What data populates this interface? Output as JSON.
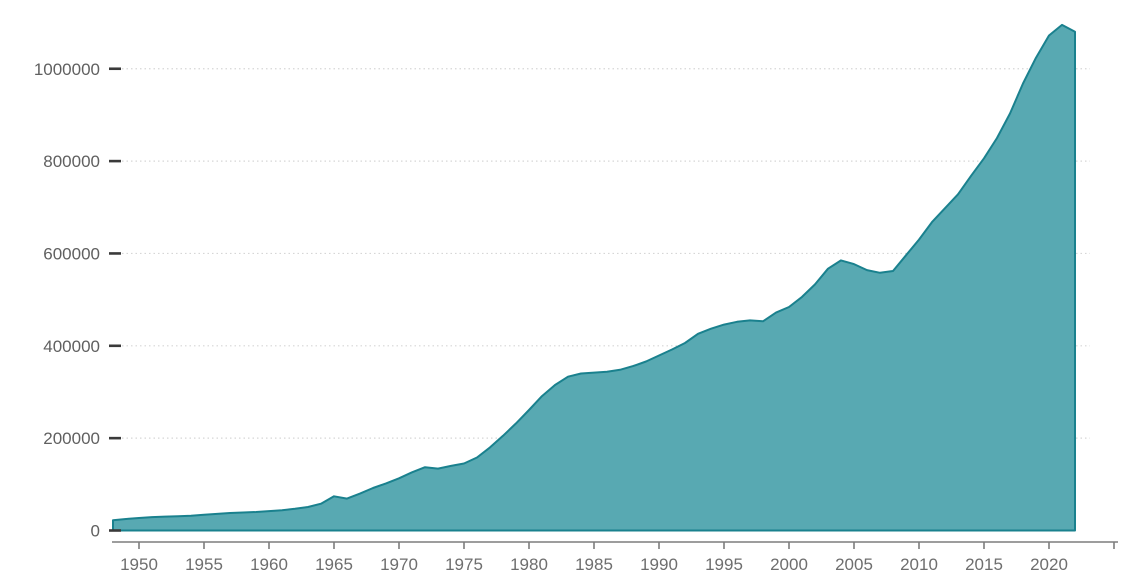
{
  "chart_data": {
    "type": "area",
    "title": "",
    "xlabel": "",
    "ylabel": "",
    "legend": "none",
    "grid": "horizontal-dotted",
    "xlim": [
      1948,
      2025
    ],
    "ylim": [
      0,
      1150000
    ],
    "x_tick_years": [
      1950,
      1955,
      1960,
      1965,
      1970,
      1975,
      1980,
      1985,
      1990,
      1995,
      2000,
      2005,
      2010,
      2015,
      2020
    ],
    "x_axis_extra_tick": 2025,
    "y_ticks": [
      0,
      200000,
      400000,
      600000,
      800000,
      1000000
    ],
    "y_tick_labels": [
      "0",
      "200000",
      "400000",
      "600000",
      "800000",
      "1000000"
    ],
    "x": [
      1948,
      1949,
      1950,
      1951,
      1952,
      1953,
      1954,
      1955,
      1956,
      1957,
      1958,
      1959,
      1960,
      1961,
      1962,
      1963,
      1964,
      1965,
      1966,
      1967,
      1968,
      1969,
      1970,
      1971,
      1972,
      1973,
      1974,
      1975,
      1976,
      1977,
      1978,
      1979,
      1980,
      1981,
      1982,
      1983,
      1984,
      1985,
      1986,
      1987,
      1988,
      1989,
      1990,
      1991,
      1992,
      1993,
      1994,
      1995,
      1996,
      1997,
      1998,
      1999,
      2000,
      2001,
      2002,
      2003,
      2004,
      2005,
      2006,
      2007,
      2008,
      2009,
      2010,
      2011,
      2012,
      2013,
      2014,
      2015,
      2016,
      2017,
      2018,
      2019,
      2020,
      2021,
      2022
    ],
    "values": [
      22000,
      25000,
      27000,
      29000,
      30000,
      31000,
      32000,
      34000,
      36000,
      38000,
      39000,
      40000,
      42000,
      44000,
      47000,
      51000,
      58000,
      74000,
      69000,
      80000,
      92000,
      102000,
      113000,
      126000,
      137000,
      134000,
      140000,
      145000,
      158000,
      180000,
      205000,
      232000,
      261000,
      291000,
      315000,
      333000,
      340000,
      342000,
      344000,
      348000,
      356000,
      366000,
      379000,
      392000,
      406000,
      426000,
      437000,
      446000,
      452000,
      455000,
      453000,
      472000,
      484000,
      506000,
      533000,
      567000,
      585000,
      577000,
      564000,
      558000,
      562000,
      596000,
      630000,
      668000,
      698000,
      728000,
      768000,
      806000,
      850000,
      903000,
      968000,
      1024000,
      1072000,
      1095000,
      1080000
    ]
  },
  "colors": {
    "area_fill": "#58A9B2",
    "area_stroke": "#1A818E",
    "gridline": "#d6d6d6",
    "y_tick_dash": "#3a3a3a",
    "x_axis_line": "#7d7d7d",
    "y_label_text": "#606060",
    "x_label_text": "#6e6e6e",
    "background": "#ffffff"
  }
}
